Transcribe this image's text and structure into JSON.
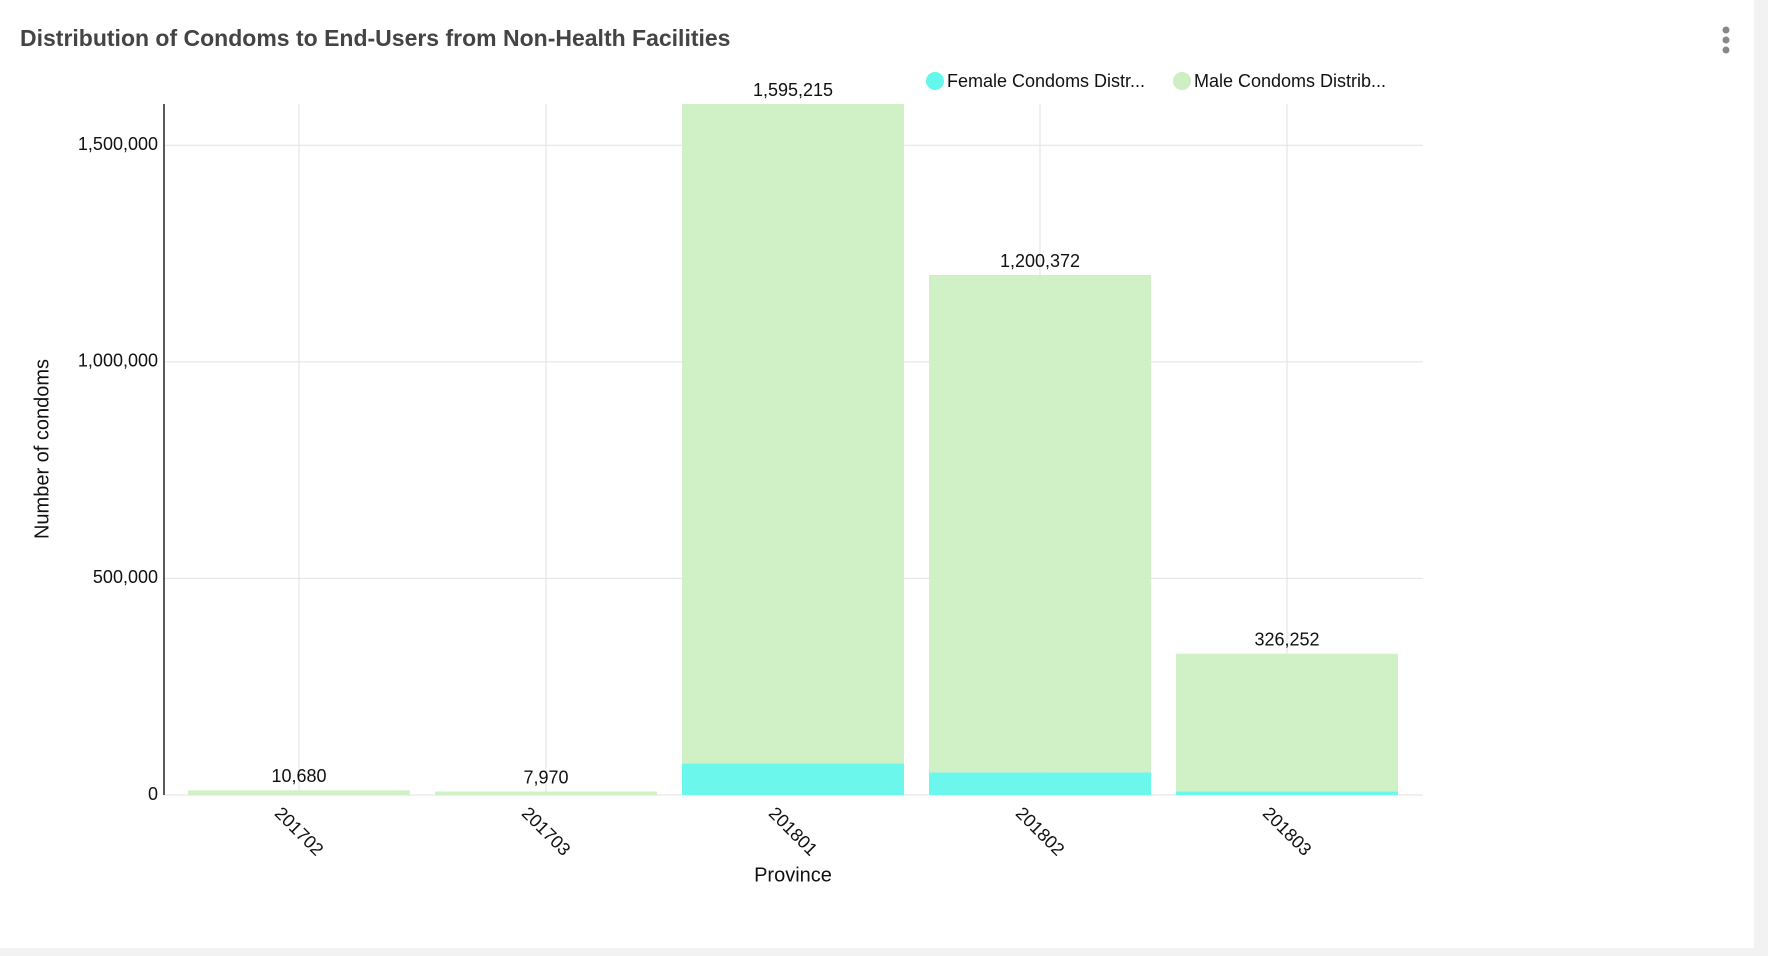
{
  "chart_data": {
    "type": "stacked-bar",
    "title": "Distribution of Condoms to End-Users from Non-Health Facilities",
    "x_label": "Province",
    "y_label": "Number of condoms",
    "categories": [
      "201702",
      "201703",
      "201801",
      "201802",
      "201803"
    ],
    "series": [
      {
        "name": "Female Condoms Distr...",
        "color": "#64f7ec",
        "values": [
          0,
          0,
          73000,
          52000,
          8000
        ]
      },
      {
        "name": "Male Condoms Distrib...",
        "color": "#cdefc3",
        "values": [
          10680,
          7970,
          1522215,
          1148372,
          318252
        ]
      }
    ],
    "totals": {
      "values": [
        10680,
        7970,
        1595215,
        1200372,
        326252
      ],
      "value_labels": [
        "10,680",
        "7,970",
        "1,595,215",
        "1,200,372",
        "326,252"
      ]
    },
    "ylim": [
      0,
      1595215
    ],
    "yticks": [
      0,
      {
        "value": 500000,
        "label": "500,000"
      },
      {
        "value": 1000000,
        "label": "1,000,000"
      },
      {
        "value": 1500000,
        "label": "1,500,000"
      }
    ],
    "grid": true,
    "legend": "top"
  }
}
